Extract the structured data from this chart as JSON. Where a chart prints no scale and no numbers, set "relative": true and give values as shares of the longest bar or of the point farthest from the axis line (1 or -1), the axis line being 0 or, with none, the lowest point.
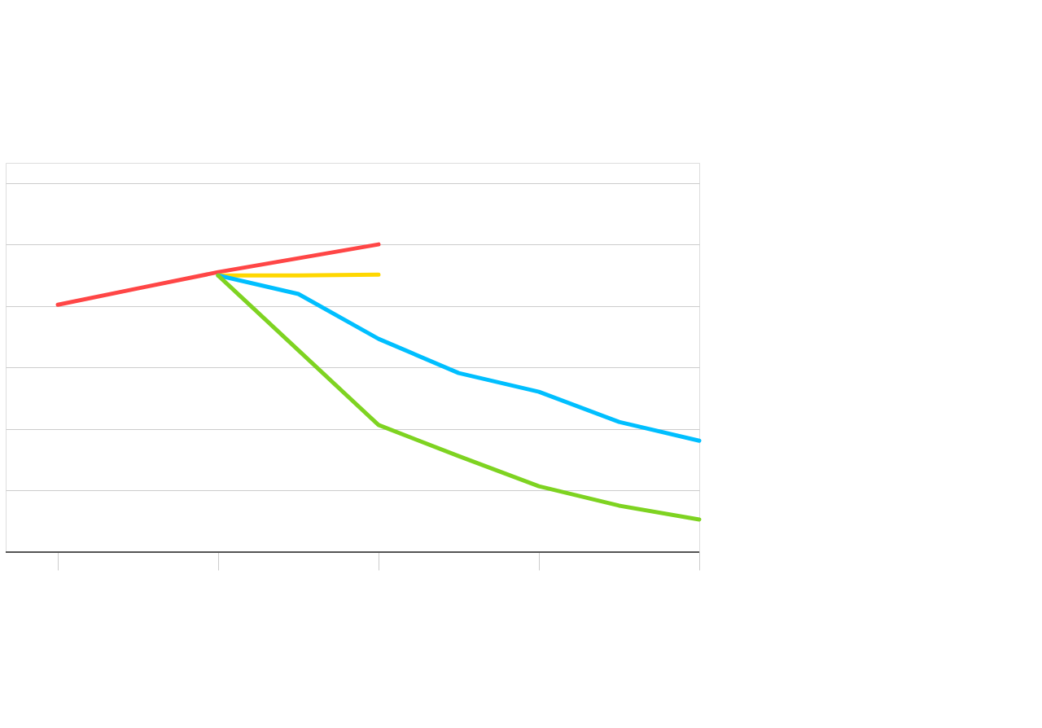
{
  "chart_data": {
    "type": "line",
    "relative": true,
    "grid": "y",
    "legend": false,
    "marker": "none",
    "line_style": "solid",
    "categories": [
      null,
      null,
      null,
      null,
      null,
      null,
      null,
      null,
      null
    ],
    "series": [
      {
        "color": "#ff4646",
        "values": [
          0.804,
          0.857,
          0.91,
          0.955,
          1.0,
          null,
          null,
          null,
          null
        ]
      },
      {
        "color": "#ffd700",
        "values": [
          null,
          null,
          0.899,
          0.899,
          0.902,
          null,
          null,
          null,
          null
        ]
      },
      {
        "color": "#00bfff",
        "values": [
          null,
          null,
          0.899,
          0.839,
          0.693,
          0.582,
          0.521,
          0.423,
          0.362
        ]
      },
      {
        "color": "#7ed321",
        "values": [
          null,
          null,
          0.899,
          0.656,
          0.413,
          0.312,
          0.214,
          0.151,
          0.106
        ]
      }
    ]
  }
}
